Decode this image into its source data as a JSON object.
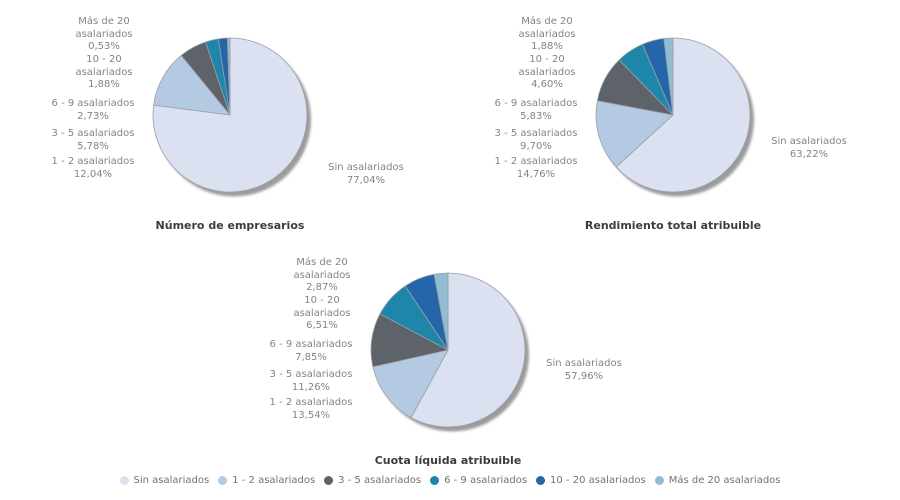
{
  "colors": {
    "background": "#ffffff",
    "slice_stroke": "#9aa0a8",
    "shadow": "#919191",
    "label_text": "#848484",
    "title_text": "#3c3c3c",
    "legend_text": "#737373"
  },
  "categories": [
    {
      "id": "sin-asalariados",
      "label": "Sin asalariados",
      "wrap_lines": [
        "Sin asalariados"
      ],
      "color": "#dce1f1"
    },
    {
      "id": "1-2-asalariados",
      "label": "1 - 2 asalariados",
      "wrap_lines": [
        "1 - 2 asalariados"
      ],
      "color": "#b4c9e2"
    },
    {
      "id": "3-5-asalariados",
      "label": "3 - 5 asalariados",
      "wrap_lines": [
        "3 - 5 asalariados"
      ],
      "color": "#5e6369"
    },
    {
      "id": "6-9-asalariados",
      "label": "6 - 9 asalariados",
      "wrap_lines": [
        "6 - 9 asalariados"
      ],
      "color": "#1d86a9"
    },
    {
      "id": "10-20-asalariados",
      "label": "10 - 20 asalariados",
      "wrap_lines": [
        "10 - 20",
        "asalariados"
      ],
      "color": "#2565a9"
    },
    {
      "id": "mas-de-20-asalariados",
      "label": "Más de 20 asalariados",
      "wrap_lines": [
        "Más de 20",
        "asalariados"
      ],
      "color": "#92bcd1"
    }
  ],
  "chart_data": [
    {
      "type": "pie",
      "title": "Número de empresarios",
      "categories": [
        "Sin asalariados",
        "1 - 2 asalariados",
        "3 - 5 asalariados",
        "6 - 9 asalariados",
        "10 - 20 asalariados",
        "Más de 20 asalariados"
      ],
      "values": [
        77.04,
        12.04,
        5.78,
        2.73,
        1.88,
        0.53
      ],
      "display": [
        "77,04%",
        "12,04%",
        "5,78%",
        "2,73%",
        "1,88%",
        "0,53%"
      ],
      "start_angle": "top",
      "direction": "clockwise",
      "legend_position": "bottom"
    },
    {
      "type": "pie",
      "title": "Rendimiento total atribuible",
      "categories": [
        "Sin asalariados",
        "1 - 2 asalariados",
        "3 - 5 asalariados",
        "6 - 9 asalariados",
        "10 - 20 asalariados",
        "Más de 20 asalariados"
      ],
      "values": [
        63.22,
        14.76,
        9.7,
        5.83,
        4.6,
        1.88
      ],
      "display": [
        "63,22%",
        "14,76%",
        "9,70%",
        "5,83%",
        "4,60%",
        "1,88%"
      ],
      "start_angle": "top",
      "direction": "clockwise",
      "legend_position": "bottom"
    },
    {
      "type": "pie",
      "title": "Cuota líquida atribuible",
      "categories": [
        "Sin asalariados",
        "1 - 2 asalariados",
        "3 - 5 asalariados",
        "6 - 9 asalariados",
        "10 - 20 asalariados",
        "Más de 20 asalariados"
      ],
      "values": [
        57.96,
        13.54,
        11.26,
        7.85,
        6.51,
        2.87
      ],
      "display": [
        "57,96%",
        "13,54%",
        "11,26%",
        "7,85%",
        "6,51%",
        "2,87%"
      ],
      "start_angle": "top",
      "direction": "clockwise",
      "legend_position": "bottom"
    }
  ]
}
